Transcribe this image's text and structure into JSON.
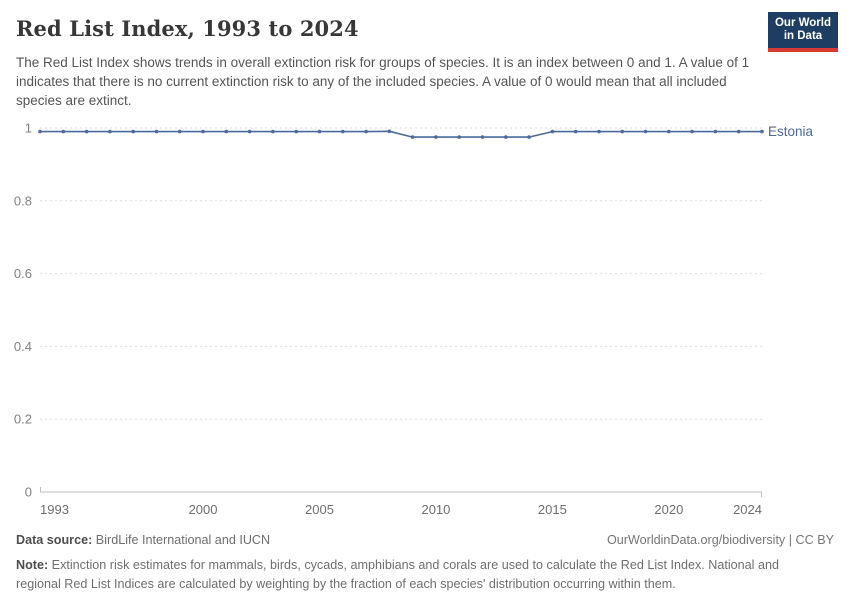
{
  "header": {
    "title": "Red List Index, 1993 to 2024",
    "subtitle": "The Red List Index shows trends in overall extinction risk for groups of species. It is an index between 0 and 1. A value of 1 indicates that there is no current extinction risk to any of the included species. A value of 0 would mean that all included species are extinct.",
    "logo": {
      "line1": "Our World",
      "line2": "in Data",
      "bg_color": "#1d3d63",
      "stripe_color": "#d93a35"
    }
  },
  "chart_data": {
    "type": "line",
    "title": "Red List Index, 1993 to 2024",
    "xlabel": "",
    "ylabel": "",
    "xlim": [
      1993,
      2024
    ],
    "ylim": [
      0,
      1
    ],
    "x_ticks": [
      1993,
      2000,
      2005,
      2010,
      2015,
      2020,
      2024
    ],
    "y_ticks": [
      0,
      0.2,
      0.4,
      0.6,
      0.8,
      1
    ],
    "grid": "horizontal-dashed",
    "legend_position": "right-end-label",
    "x": [
      1993,
      1994,
      1995,
      1996,
      1997,
      1998,
      1999,
      2000,
      2001,
      2002,
      2003,
      2004,
      2005,
      2006,
      2007,
      2008,
      2009,
      2010,
      2011,
      2012,
      2013,
      2014,
      2015,
      2016,
      2017,
      2018,
      2019,
      2020,
      2021,
      2022,
      2023,
      2024
    ],
    "series": [
      {
        "name": "Estonia",
        "color": "#4C6A9C",
        "values": [
          0.99,
          0.99,
          0.99,
          0.99,
          0.99,
          0.99,
          0.99,
          0.99,
          0.99,
          0.99,
          0.99,
          0.99,
          0.99,
          0.99,
          0.99,
          0.991,
          0.975,
          0.975,
          0.975,
          0.975,
          0.975,
          0.975,
          0.99,
          0.99,
          0.99,
          0.99,
          0.99,
          0.99,
          0.99,
          0.99,
          0.99,
          0.99
        ]
      }
    ],
    "colors": {
      "grid": "#dedede",
      "axis": "#c2c2c2",
      "y_tick_label": "#828282",
      "x_tick_label": "#6e6e6e"
    }
  },
  "footer": {
    "datasource_label": "Data source:",
    "datasource_value": " BirdLife International and IUCN",
    "link": "OurWorldinData.org/biodiversity | CC BY",
    "note_label": "Note:",
    "note_value": " Extinction risk estimates for mammals, birds, cycads, amphibians and corals are used to calculate the Red List Index. National and regional Red List Indices are calculated by weighting by the fraction of each species' distribution occurring within them."
  }
}
